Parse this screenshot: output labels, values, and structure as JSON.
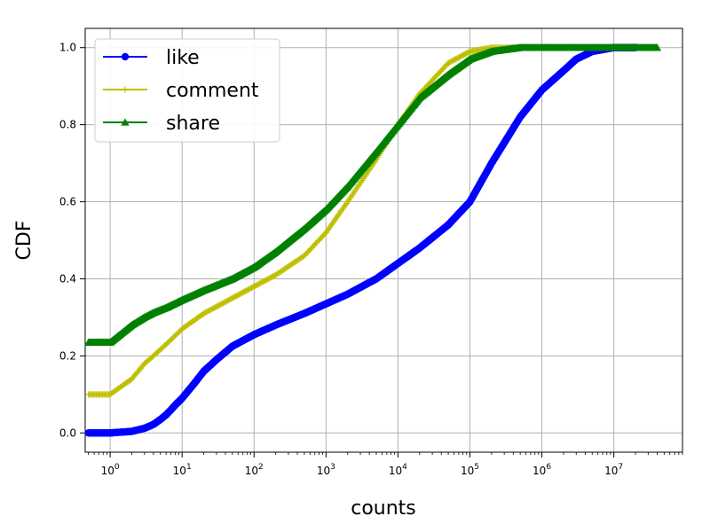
{
  "chart_data": {
    "type": "line",
    "title": "",
    "xlabel": "counts",
    "ylabel": "CDF",
    "xscale": "log",
    "xlim": [
      0.45,
      90000000
    ],
    "ylim": [
      -0.05,
      1.05
    ],
    "grid": true,
    "legend": {
      "placement": "top-left"
    },
    "x_ticks": [
      {
        "base": "10",
        "exp": "0",
        "value": 1
      },
      {
        "base": "10",
        "exp": "1",
        "value": 10
      },
      {
        "base": "10",
        "exp": "2",
        "value": 100
      },
      {
        "base": "10",
        "exp": "3",
        "value": 1000
      },
      {
        "base": "10",
        "exp": "4",
        "value": 10000
      },
      {
        "base": "10",
        "exp": "5",
        "value": 100000
      },
      {
        "base": "10",
        "exp": "6",
        "value": 1000000
      },
      {
        "base": "10",
        "exp": "7",
        "value": 10000000
      }
    ],
    "y_ticks": [
      {
        "label": "0.0",
        "value": 0.0
      },
      {
        "label": "0.2",
        "value": 0.2
      },
      {
        "label": "0.4",
        "value": 0.4
      },
      {
        "label": "0.6",
        "value": 0.6
      },
      {
        "label": "0.8",
        "value": 0.8
      },
      {
        "label": "1.0",
        "value": 1.0
      }
    ],
    "series": [
      {
        "name": "like",
        "color": "#0000ff",
        "marker": "circle",
        "points": [
          [
            0.5,
            0.0
          ],
          [
            1,
            0.0
          ],
          [
            2,
            0.004
          ],
          [
            3,
            0.012
          ],
          [
            4,
            0.022
          ],
          [
            5,
            0.035
          ],
          [
            6,
            0.047
          ],
          [
            7,
            0.06
          ],
          [
            8,
            0.072
          ],
          [
            10,
            0.09
          ],
          [
            15,
            0.13
          ],
          [
            20,
            0.16
          ],
          [
            30,
            0.19
          ],
          [
            50,
            0.225
          ],
          [
            100,
            0.255
          ],
          [
            200,
            0.28
          ],
          [
            500,
            0.31
          ],
          [
            1000,
            0.335
          ],
          [
            2000,
            0.36
          ],
          [
            5000,
            0.4
          ],
          [
            10000,
            0.44
          ],
          [
            20000,
            0.48
          ],
          [
            50000,
            0.54
          ],
          [
            100000,
            0.6
          ],
          [
            200000,
            0.7
          ],
          [
            500000,
            0.82
          ],
          [
            1000000,
            0.89
          ],
          [
            2000000,
            0.94
          ],
          [
            3000000,
            0.97
          ],
          [
            5000000,
            0.99
          ],
          [
            10000000,
            1.0
          ],
          [
            20000000,
            1.0
          ]
        ]
      },
      {
        "name": "comment",
        "color": "#bfbf00",
        "marker": "plus",
        "points": [
          [
            0.5,
            0.1
          ],
          [
            1,
            0.1
          ],
          [
            2,
            0.14
          ],
          [
            3,
            0.18
          ],
          [
            4,
            0.2
          ],
          [
            6,
            0.23
          ],
          [
            10,
            0.27
          ],
          [
            20,
            0.31
          ],
          [
            50,
            0.35
          ],
          [
            100,
            0.38
          ],
          [
            200,
            0.41
          ],
          [
            500,
            0.46
          ],
          [
            1000,
            0.52
          ],
          [
            2000,
            0.6
          ],
          [
            5000,
            0.71
          ],
          [
            10000,
            0.8
          ],
          [
            20000,
            0.88
          ],
          [
            50000,
            0.96
          ],
          [
            100000,
            0.99
          ],
          [
            200000,
            1.0
          ],
          [
            1000000,
            1.0
          ]
        ]
      },
      {
        "name": "share",
        "color": "#008000",
        "marker": "triangle",
        "points": [
          [
            0.5,
            0.235
          ],
          [
            1,
            0.235
          ],
          [
            2,
            0.28
          ],
          [
            3,
            0.3
          ],
          [
            4,
            0.312
          ],
          [
            6,
            0.325
          ],
          [
            10,
            0.345
          ],
          [
            20,
            0.37
          ],
          [
            50,
            0.4
          ],
          [
            100,
            0.43
          ],
          [
            200,
            0.47
          ],
          [
            500,
            0.53
          ],
          [
            1000,
            0.58
          ],
          [
            2000,
            0.64
          ],
          [
            5000,
            0.73
          ],
          [
            10000,
            0.8
          ],
          [
            20000,
            0.87
          ],
          [
            50000,
            0.93
          ],
          [
            100000,
            0.97
          ],
          [
            200000,
            0.99
          ],
          [
            500000,
            1.0
          ],
          [
            2000000,
            1.0
          ],
          [
            5000000,
            1.0
          ],
          [
            10000000,
            1.0
          ],
          [
            40000000,
            1.0
          ]
        ]
      }
    ]
  }
}
